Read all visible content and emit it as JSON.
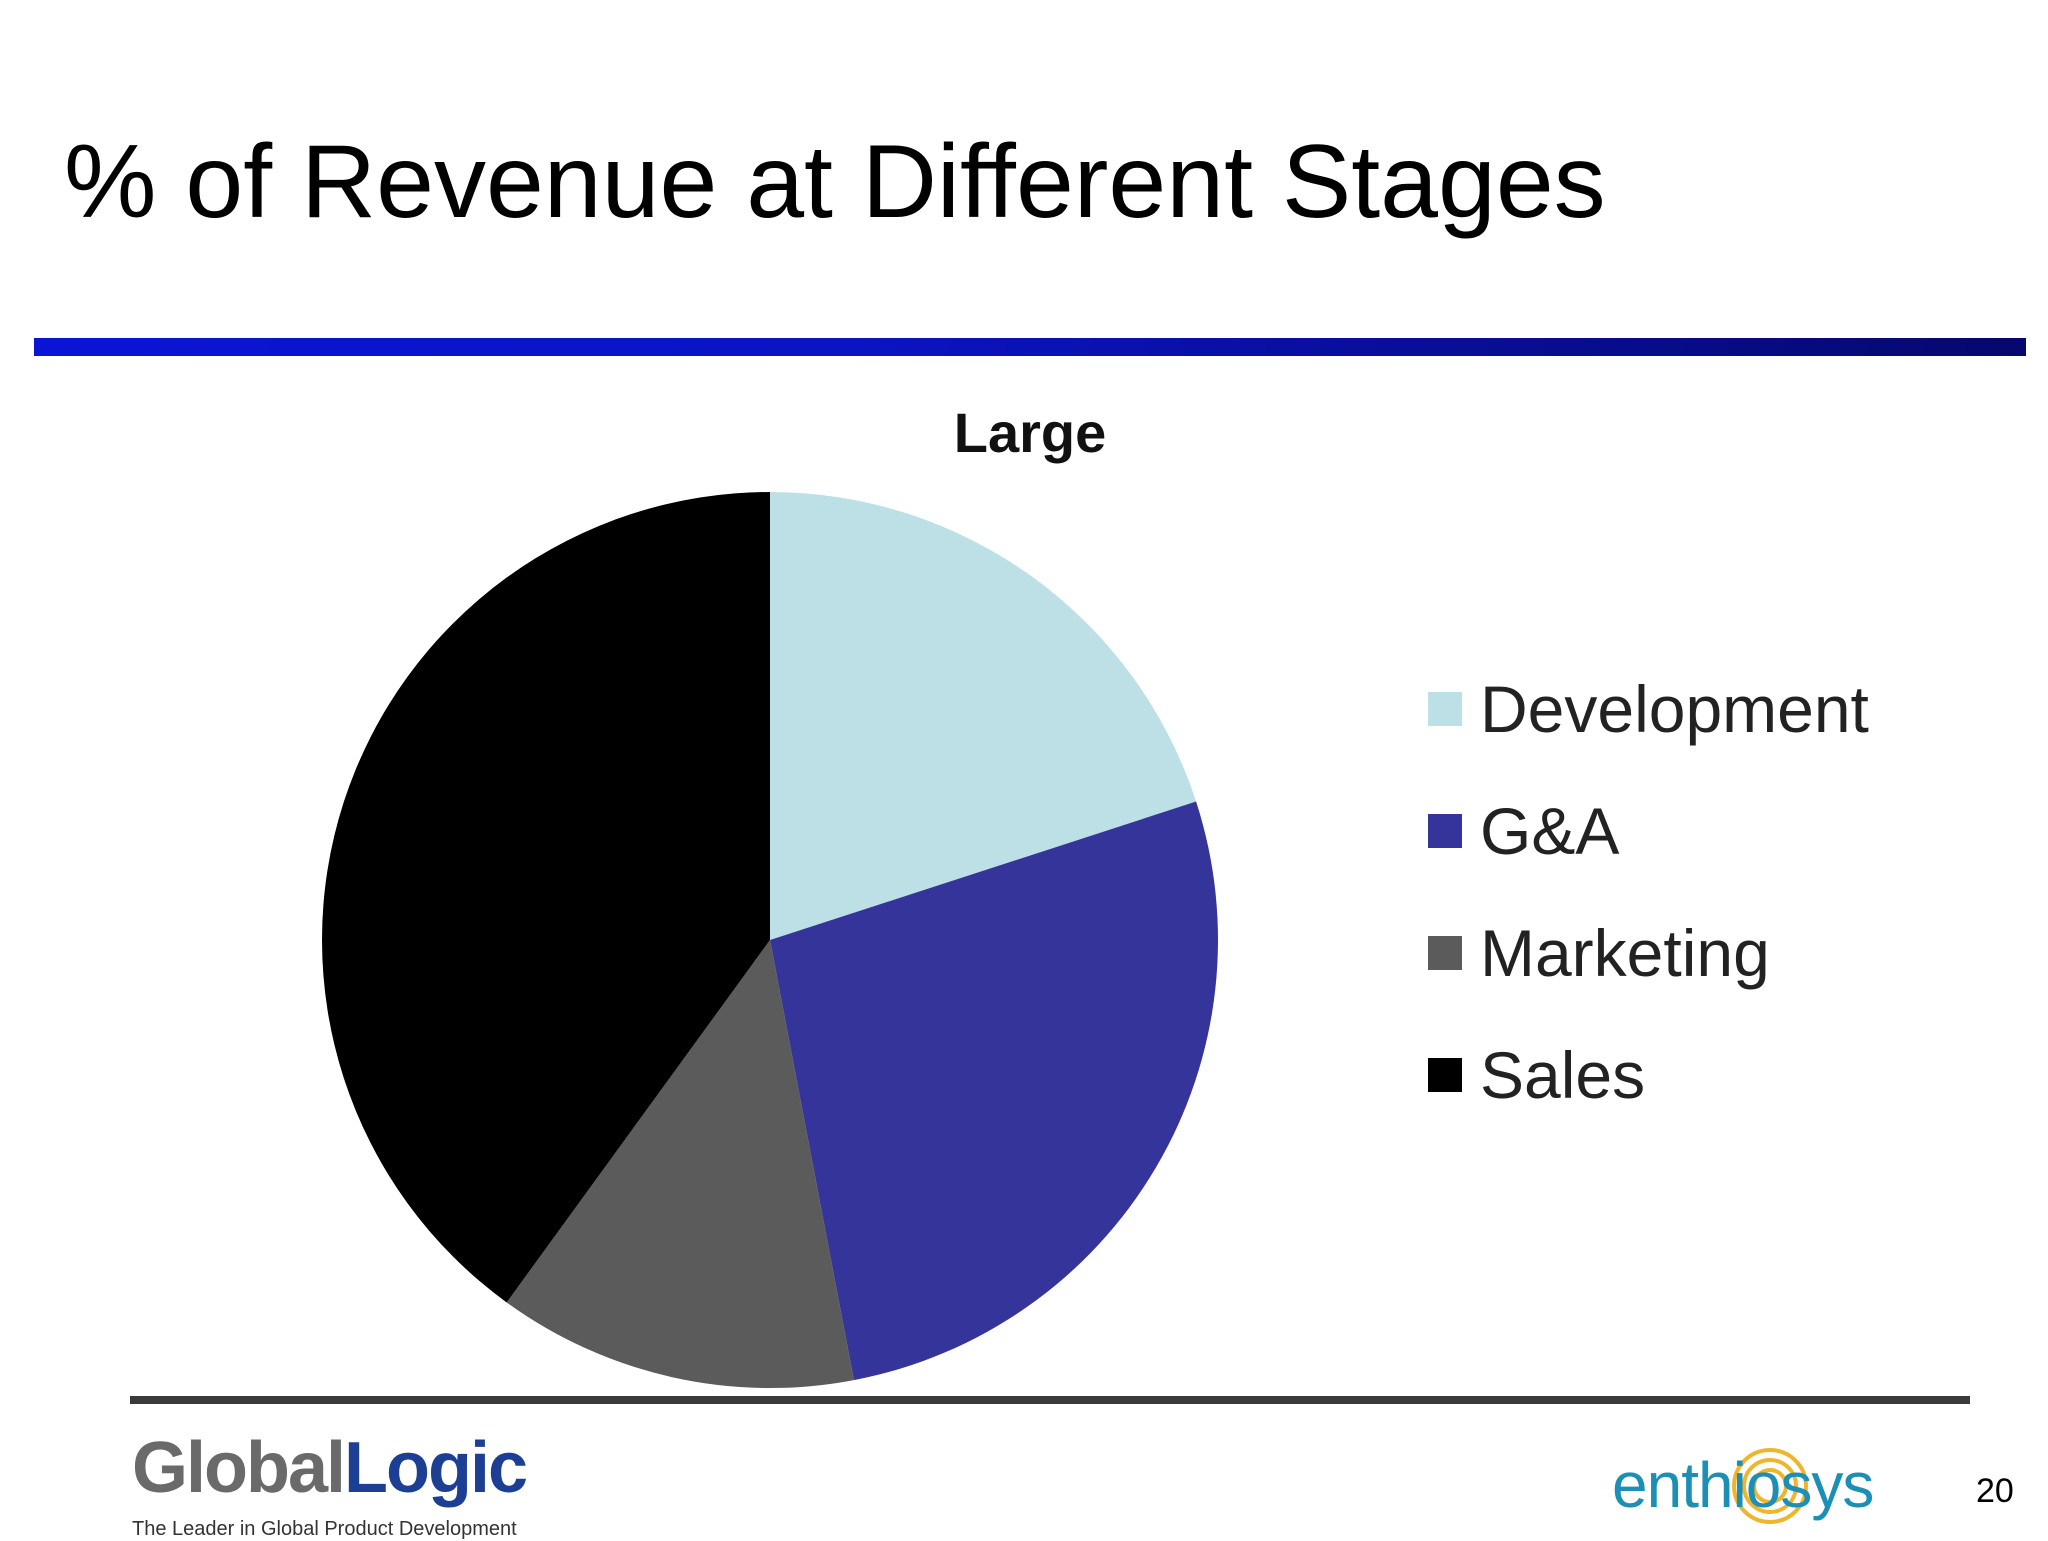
{
  "slide": {
    "title": "% of Revenue at Different Stages",
    "page_number": "20"
  },
  "chart_data": {
    "type": "pie",
    "title": "Large",
    "categories": [
      "Development",
      "G&A",
      "Marketing",
      "Sales"
    ],
    "values": [
      20,
      27,
      13,
      40
    ],
    "colors": [
      "#bce0e5",
      "#35349a",
      "#5b5b5b",
      "#000000"
    ],
    "start_angle_deg": 0,
    "direction": "clockwise",
    "legend_position": "right"
  },
  "footer": {
    "left_logo": {
      "name_part1": "Global",
      "name_part2": "Logic",
      "tagline": "The Leader in Global Product Development"
    },
    "right_logo": {
      "name": "enthiosys",
      "color": "#1b8fb5",
      "ring_color": "#f0b52a"
    }
  }
}
